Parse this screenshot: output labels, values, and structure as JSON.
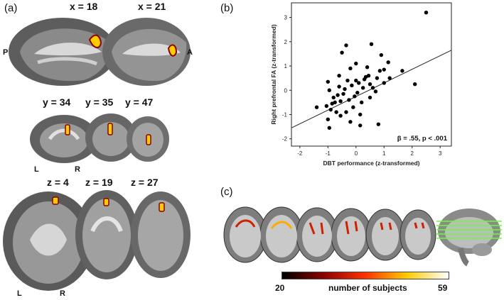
{
  "panels": {
    "a": {
      "label": "(a)",
      "sagittal": [
        {
          "label": "x = 18"
        },
        {
          "label": "x = 21"
        }
      ],
      "sagittal_sides": {
        "left": "P",
        "right": "A"
      },
      "coronal": [
        {
          "label": "y = 34"
        },
        {
          "label": "y = 35"
        },
        {
          "label": "y = 47"
        }
      ],
      "coronal_sides": {
        "left": "L",
        "right": "R"
      },
      "axial": [
        {
          "label": "z = 4"
        },
        {
          "label": "z = 19"
        },
        {
          "label": "z = 27"
        }
      ],
      "axial_sides": {
        "left": "L",
        "right": "R"
      }
    },
    "b": {
      "label": "(b)"
    },
    "c": {
      "label": "(c)",
      "colorbar": {
        "min_label": "20",
        "title": "number of subjects",
        "max_label": "59",
        "colors": [
          "#000000",
          "#8b0000",
          "#ff3300",
          "#ffcc00",
          "#ffffff"
        ]
      }
    }
  },
  "chart_data": {
    "type": "scatter",
    "xlabel": "DBT performance (z-transformed)",
    "ylabel": "Right prefrontal FA (z-transformed)",
    "xlim": [
      -2.3,
      3.4
    ],
    "ylim": [
      -2.3,
      3.6
    ],
    "xticks": [
      -2,
      -1,
      0,
      1,
      2,
      3
    ],
    "yticks": [
      -2,
      -1,
      0,
      1,
      2,
      3
    ],
    "grid": false,
    "annotation": "β = .55, p < .001",
    "fit_line": {
      "x": [
        -2.3,
        3.4
      ],
      "y": [
        -1.55,
        1.65
      ]
    },
    "points": [
      {
        "x": 2.5,
        "y": 3.2
      },
      {
        "x": 2.1,
        "y": 0.25
      },
      {
        "x": 1.65,
        "y": 0.8
      },
      {
        "x": 1.2,
        "y": 0.5
      },
      {
        "x": 1.15,
        "y": 1.15
      },
      {
        "x": 1.0,
        "y": 0.85
      },
      {
        "x": 1.0,
        "y": 0.3
      },
      {
        "x": 0.9,
        "y": 1.45
      },
      {
        "x": 0.85,
        "y": 0.8
      },
      {
        "x": 0.75,
        "y": 0.5
      },
      {
        "x": 0.6,
        "y": 0.1
      },
      {
        "x": 0.55,
        "y": 1.9
      },
      {
        "x": 0.5,
        "y": 0.25
      },
      {
        "x": 0.5,
        "y": -0.3
      },
      {
        "x": 0.45,
        "y": 0.6
      },
      {
        "x": 0.35,
        "y": 0.55
      },
      {
        "x": 0.3,
        "y": 0.45
      },
      {
        "x": 0.25,
        "y": 0.1
      },
      {
        "x": 0.2,
        "y": -0.5
      },
      {
        "x": 0.15,
        "y": -1.0
      },
      {
        "x": 0.1,
        "y": 0.3
      },
      {
        "x": 0.05,
        "y": -0.1
      },
      {
        "x": 0.0,
        "y": 1.1
      },
      {
        "x": 0.0,
        "y": 0.4
      },
      {
        "x": -0.05,
        "y": -0.25
      },
      {
        "x": -0.1,
        "y": -0.7
      },
      {
        "x": -0.15,
        "y": 0.2
      },
      {
        "x": -0.2,
        "y": 0.9
      },
      {
        "x": -0.2,
        "y": -1.3
      },
      {
        "x": -0.25,
        "y": -0.4
      },
      {
        "x": -0.3,
        "y": 0.4
      },
      {
        "x": -0.35,
        "y": 1.85
      },
      {
        "x": -0.35,
        "y": -0.9
      },
      {
        "x": -0.4,
        "y": 0.05
      },
      {
        "x": -0.45,
        "y": -0.15
      },
      {
        "x": -0.5,
        "y": 1.55
      },
      {
        "x": -0.55,
        "y": -0.45
      },
      {
        "x": -0.6,
        "y": 0.6
      },
      {
        "x": -0.6,
        "y": 0.15
      },
      {
        "x": -0.65,
        "y": -0.2
      },
      {
        "x": -0.7,
        "y": -0.9
      },
      {
        "x": -0.75,
        "y": -0.5
      },
      {
        "x": -0.8,
        "y": -0.3
      },
      {
        "x": -0.85,
        "y": -0.55
      },
      {
        "x": -0.9,
        "y": -0.8
      },
      {
        "x": -0.95,
        "y": 0.0
      },
      {
        "x": -0.95,
        "y": -1.55
      },
      {
        "x": -1.0,
        "y": 0.35
      },
      {
        "x": -1.0,
        "y": -1.2
      },
      {
        "x": -1.05,
        "y": -0.65
      },
      {
        "x": -1.4,
        "y": -0.7
      },
      {
        "x": 0.15,
        "y": -1.45
      },
      {
        "x": 0.8,
        "y": -1.4
      },
      {
        "x": -0.55,
        "y": -1.05
      },
      {
        "x": 0.4,
        "y": 0.95
      },
      {
        "x": 0.7,
        "y": -0.05
      }
    ]
  }
}
